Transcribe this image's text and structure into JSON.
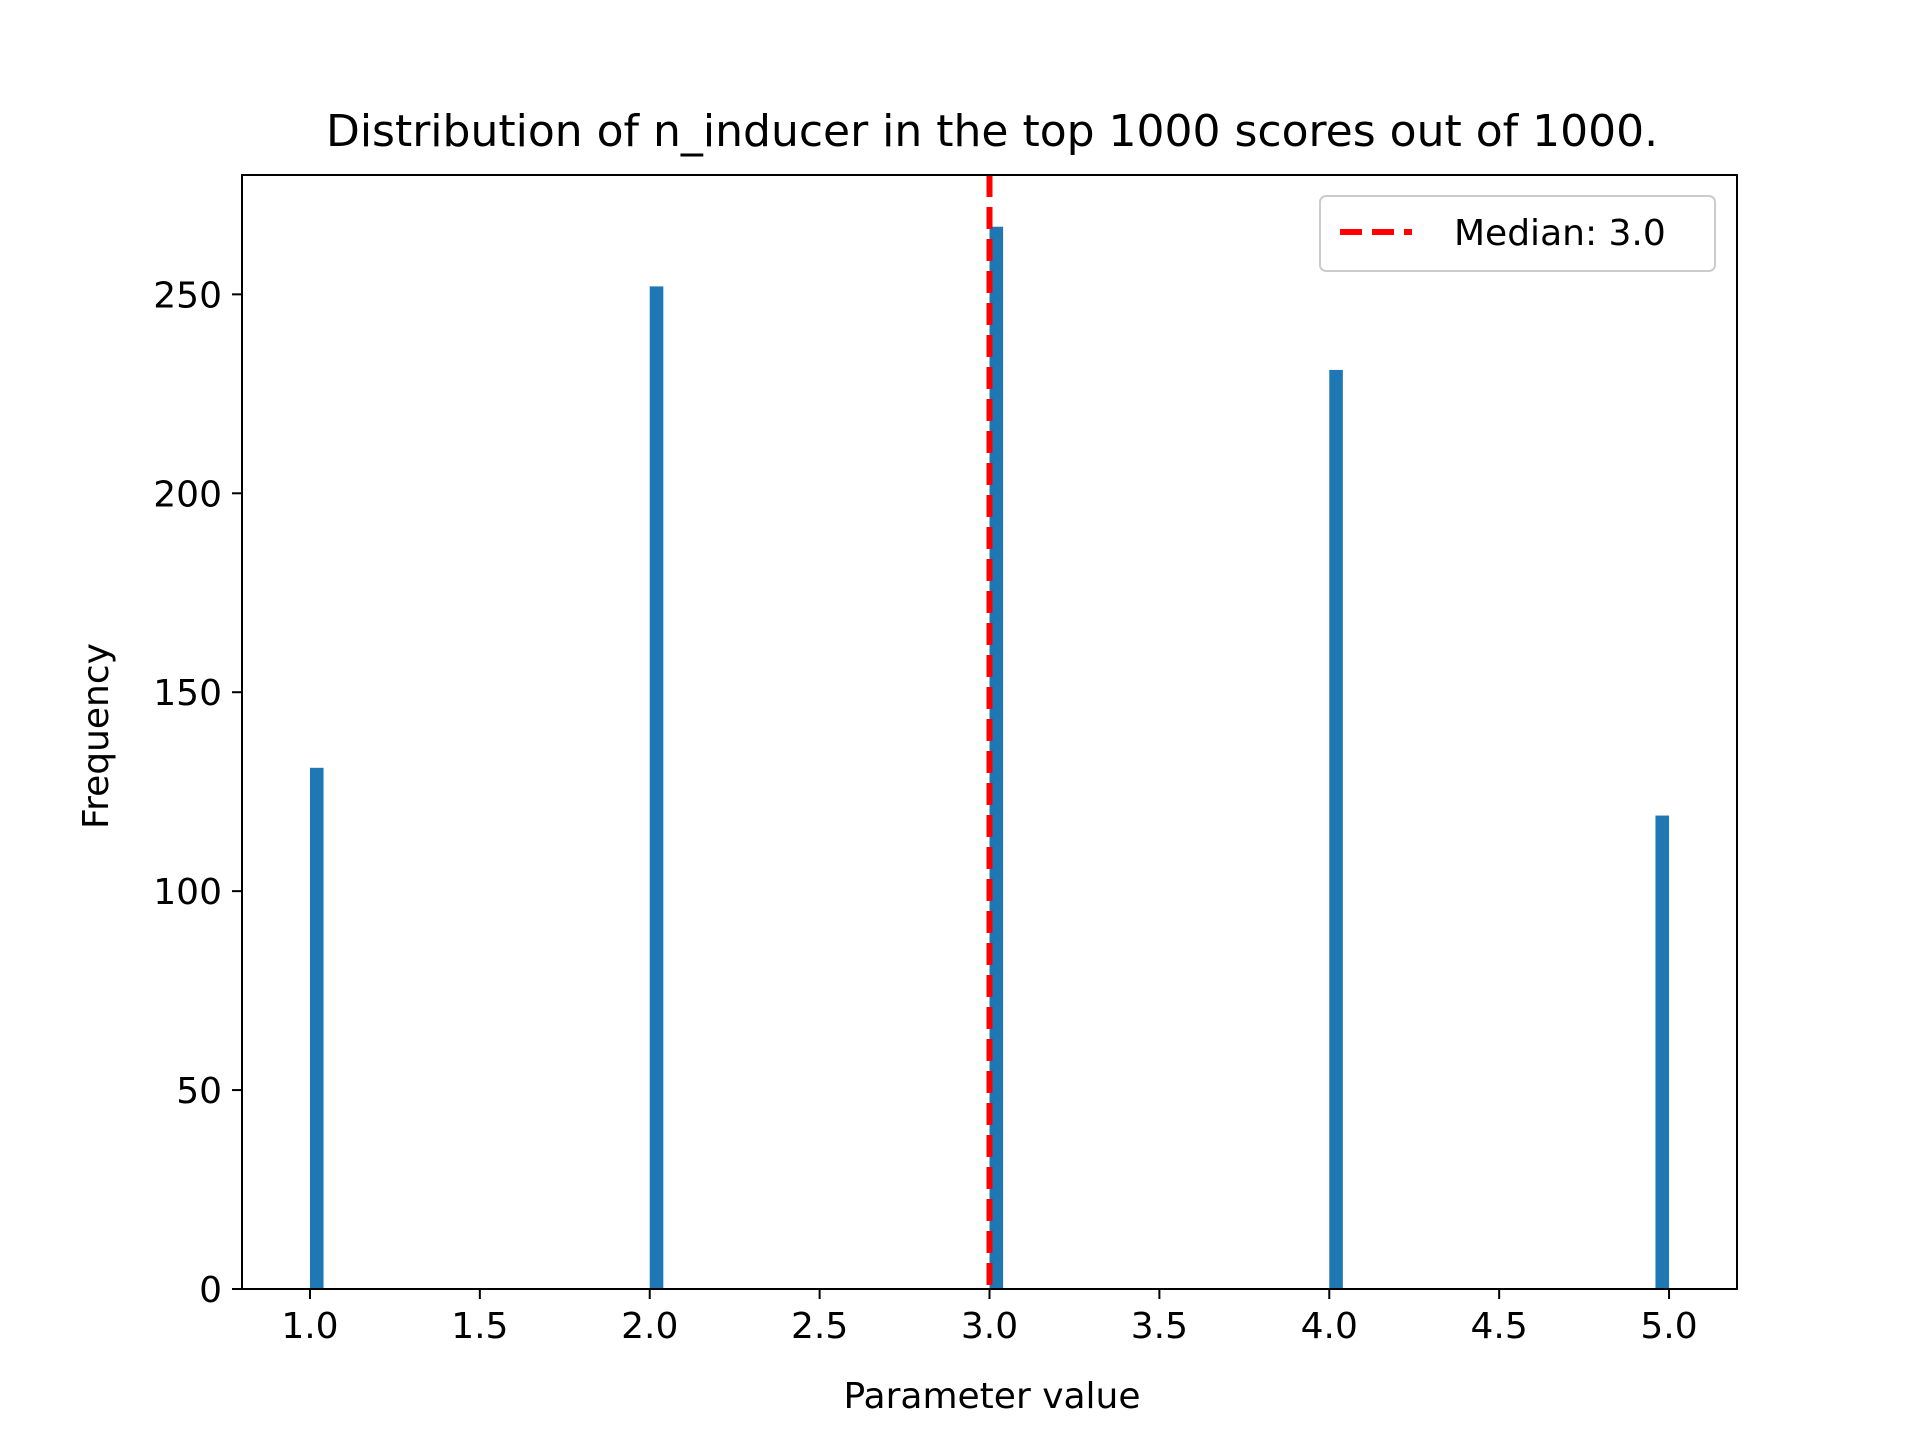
{
  "chart_data": {
    "type": "bar",
    "title": "Distribution of n_inducer in the top 1000 scores out of 1000.",
    "xlabel": "Parameter value",
    "ylabel": "Frequency",
    "xlim": [
      0.8,
      5.2
    ],
    "ylim": [
      0,
      280
    ],
    "x_ticks": [
      1.0,
      1.5,
      2.0,
      2.5,
      3.0,
      3.5,
      4.0,
      4.5,
      5.0
    ],
    "x_tick_labels": [
      "1.0",
      "1.5",
      "2.0",
      "2.5",
      "3.0",
      "3.5",
      "4.0",
      "4.5",
      "5.0"
    ],
    "y_ticks": [
      0,
      50,
      100,
      150,
      200,
      250
    ],
    "y_tick_labels": [
      "0",
      "50",
      "100",
      "150",
      "200",
      "250"
    ],
    "bin_width": 0.04,
    "bars": [
      {
        "x_start": 1.0,
        "value": 131
      },
      {
        "x_start": 2.0,
        "value": 252
      },
      {
        "x_start": 3.0,
        "value": 267
      },
      {
        "x_start": 4.0,
        "value": 231
      },
      {
        "x_start": 4.96,
        "value": 119
      }
    ],
    "median_line": {
      "x": 3.0,
      "label": "Median: 3.0"
    },
    "legend": {
      "placement": "upper right",
      "entries": [
        "Median: 3.0"
      ]
    },
    "grid": false,
    "colors": {
      "bar": "#1f77b4",
      "median": "#ff0000",
      "axis": "#000000"
    }
  }
}
